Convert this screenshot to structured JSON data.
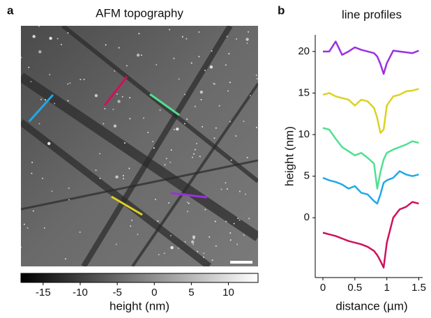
{
  "panel_labels": [
    "a",
    "b"
  ],
  "chart_data": [
    {
      "type": "heatmap",
      "title": "AFM topography",
      "colorbar_label": "height (nm)",
      "clim": [
        -18,
        14
      ],
      "cticks": [
        -15,
        -10,
        -5,
        0,
        5,
        10
      ]
    },
    {
      "type": "line",
      "title": "line profiles",
      "xlabel": "distance (µm)",
      "ylabel": "height (nm)",
      "x": [
        0,
        0.1,
        0.2,
        0.3,
        0.4,
        0.5,
        0.6,
        0.7,
        0.8,
        0.85,
        0.9,
        0.95,
        1.0,
        1.1,
        1.2,
        1.3,
        1.4,
        1.5
      ],
      "xlim": [
        -0.12,
        1.56
      ],
      "xticks": [
        0,
        0.5,
        1,
        1.5
      ],
      "ylim": [
        -7.2,
        22
      ],
      "yticks": [
        0,
        5,
        10,
        15,
        20
      ],
      "series": [
        {
          "color": "#9b30e0",
          "values": [
            20,
            20,
            21.2,
            19.6,
            20,
            20.5,
            20.2,
            20,
            19.8,
            19.4,
            18.5,
            17.3,
            18.6,
            20.1,
            20,
            19.9,
            19.8,
            20.1
          ]
        },
        {
          "color": "#dcd21e",
          "values": [
            14.8,
            15,
            14.6,
            14.4,
            14.2,
            13.5,
            14.2,
            14,
            13.2,
            12,
            10.2,
            10.6,
            13.5,
            14.6,
            14.8,
            15.2,
            15.3,
            15.5
          ]
        },
        {
          "color": "#50e090",
          "values": [
            10.8,
            10.6,
            9.5,
            8.5,
            8,
            7.5,
            7.8,
            7.2,
            6.5,
            3.5,
            5.5,
            7,
            7.8,
            8.2,
            8.5,
            8.8,
            9.2,
            9
          ]
        },
        {
          "color": "#20a8e8",
          "values": [
            4.8,
            4.5,
            4.3,
            4,
            3.5,
            3.8,
            3,
            2.8,
            2,
            1.7,
            2.8,
            4.2,
            4.5,
            4.8,
            5.6,
            5.2,
            5,
            5.2
          ]
        },
        {
          "color": "#d0105a",
          "values": [
            -1.8,
            -2,
            -2.2,
            -2.5,
            -2.8,
            -3,
            -3.2,
            -3.5,
            -4,
            -4.5,
            -5.2,
            -6,
            -3,
            0,
            1,
            1.3,
            1.9,
            1.7
          ]
        }
      ]
    }
  ]
}
